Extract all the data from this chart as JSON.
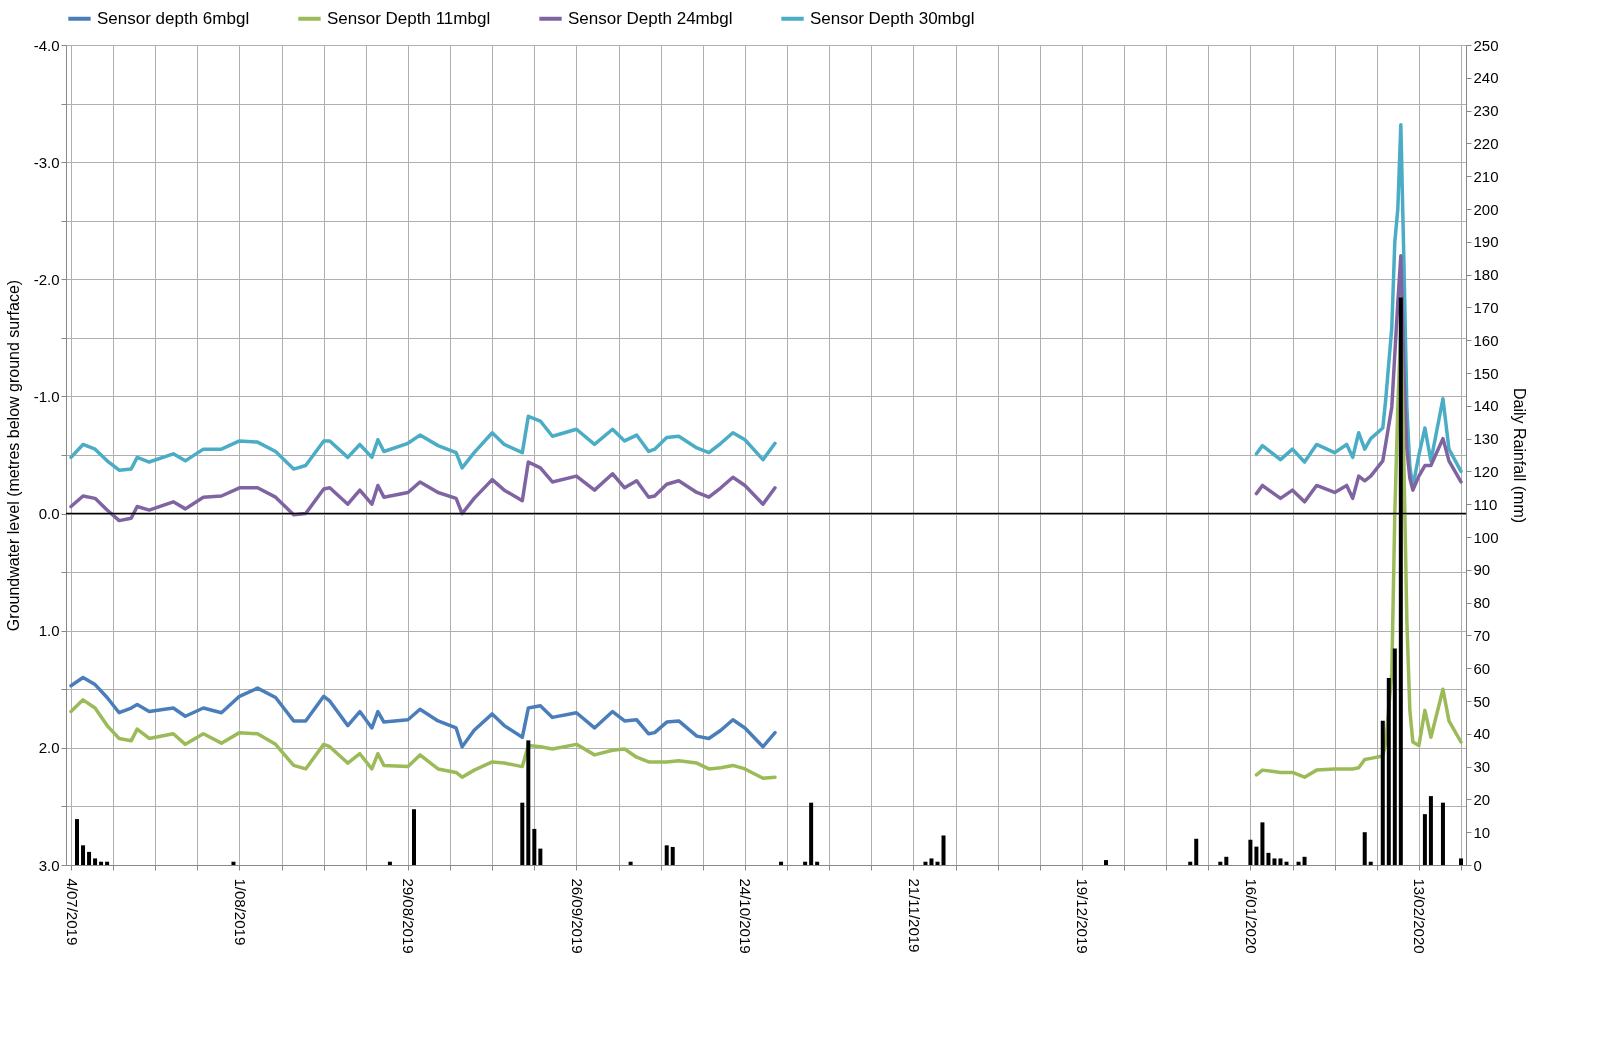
{
  "chart_data": {
    "type": "line",
    "ylabel": "Groundwater level (metres below ground surface)",
    "y2label": "Daily Rainfall (mm)",
    "legend": "top",
    "grid": true,
    "line_style": "solid",
    "xlim": [
      "2019-07-04",
      "2020-02-20"
    ],
    "xticks": [
      {
        "value": "2019-07-04",
        "label": "4/07/2019"
      },
      {
        "value": "2019-07-11",
        "label": null
      },
      {
        "value": "2019-07-18",
        "label": null
      },
      {
        "value": "2019-07-25",
        "label": null
      },
      {
        "value": "2019-08-01",
        "label": "1/08/2019"
      },
      {
        "value": "2019-08-08",
        "label": null
      },
      {
        "value": "2019-08-15",
        "label": null
      },
      {
        "value": "2019-08-22",
        "label": null
      },
      {
        "value": "2019-08-29",
        "label": "29/08/2019"
      },
      {
        "value": "2019-09-05",
        "label": null
      },
      {
        "value": "2019-09-12",
        "label": null
      },
      {
        "value": "2019-09-19",
        "label": null
      },
      {
        "value": "2019-09-26",
        "label": "26/09/2019"
      },
      {
        "value": "2019-10-03",
        "label": null
      },
      {
        "value": "2019-10-10",
        "label": null
      },
      {
        "value": "2019-10-17",
        "label": null
      },
      {
        "value": "2019-10-24",
        "label": "24/10/2019"
      },
      {
        "value": "2019-10-31",
        "label": null
      },
      {
        "value": "2019-11-07",
        "label": null
      },
      {
        "value": "2019-11-14",
        "label": null
      },
      {
        "value": "2019-11-21",
        "label": "21/11/2019"
      },
      {
        "value": "2019-11-28",
        "label": null
      },
      {
        "value": "2019-12-05",
        "label": null
      },
      {
        "value": "2019-12-12",
        "label": null
      },
      {
        "value": "2019-12-19",
        "label": "19/12/2019"
      },
      {
        "value": "2019-12-26",
        "label": null
      },
      {
        "value": "2020-01-02",
        "label": null
      },
      {
        "value": "2020-01-09",
        "label": null
      },
      {
        "value": "2020-01-16",
        "label": "16/01/2020"
      },
      {
        "value": "2020-01-23",
        "label": null
      },
      {
        "value": "2020-01-30",
        "label": null
      },
      {
        "value": "2020-02-06",
        "label": null
      },
      {
        "value": "2020-02-13",
        "label": "13/02/2020"
      },
      {
        "value": "2020-02-20",
        "label": null
      }
    ],
    "ylim": [
      3.0,
      -4.0
    ],
    "yticks": [
      {
        "value": -4.0,
        "label": "-4.0"
      },
      {
        "value": -3.5,
        "label": null
      },
      {
        "value": -3.0,
        "label": "-3.0"
      },
      {
        "value": -2.5,
        "label": null
      },
      {
        "value": -2.0,
        "label": "-2.0"
      },
      {
        "value": -1.5,
        "label": null
      },
      {
        "value": -1.0,
        "label": "-1.0"
      },
      {
        "value": -0.5,
        "label": null
      },
      {
        "value": 0.0,
        "label": "0.0"
      },
      {
        "value": 0.5,
        "label": null
      },
      {
        "value": 1.0,
        "label": "1.0"
      },
      {
        "value": 1.5,
        "label": null
      },
      {
        "value": 2.0,
        "label": "2.0"
      },
      {
        "value": 2.5,
        "label": null
      },
      {
        "value": 3.0,
        "label": "3.0"
      }
    ],
    "y2lim": [
      0,
      250
    ],
    "y2ticks": [
      0,
      10,
      20,
      30,
      40,
      50,
      60,
      70,
      80,
      90,
      100,
      110,
      120,
      130,
      140,
      150,
      160,
      170,
      180,
      190,
      200,
      210,
      220,
      230,
      240,
      250
    ],
    "ref_lines": [
      {
        "axis": "y",
        "value": 0.0,
        "color": "#000000"
      }
    ],
    "x": [
      "2019-07-04",
      "2019-07-06",
      "2019-07-08",
      "2019-07-10",
      "2019-07-12",
      "2019-07-14",
      "2019-07-15",
      "2019-07-17",
      "2019-07-21",
      "2019-07-23",
      "2019-07-26",
      "2019-07-29",
      "2019-08-01",
      "2019-08-04",
      "2019-08-07",
      "2019-08-10",
      "2019-08-12",
      "2019-08-15",
      "2019-08-16",
      "2019-08-19",
      "2019-08-21",
      "2019-08-23",
      "2019-08-24",
      "2019-08-25",
      "2019-08-29",
      "2019-08-31",
      "2019-09-03",
      "2019-09-06",
      "2019-09-07",
      "2019-09-09",
      "2019-09-12",
      "2019-09-14",
      "2019-09-17",
      "2019-09-18",
      "2019-09-20",
      "2019-09-22",
      "2019-09-26",
      "2019-09-29",
      "2019-10-02",
      "2019-10-04",
      "2019-10-06",
      "2019-10-08",
      "2019-10-09",
      "2019-10-11",
      "2019-10-13",
      "2019-10-16",
      "2019-10-18",
      "2019-10-20",
      "2019-10-22",
      "2019-10-24",
      "2019-10-27",
      "2019-10-29",
      "2019-12-01",
      "2020-01-17",
      "2020-01-18",
      "2020-01-21",
      "2020-01-23",
      "2020-01-25",
      "2020-01-27",
      "2020-01-30",
      "2020-02-01",
      "2020-02-02",
      "2020-02-03",
      "2020-02-04",
      "2020-02-05",
      "2020-02-07",
      "2020-02-07T12:00",
      "2020-02-08T12:00",
      "2020-02-09",
      "2020-02-09T12:00",
      "2020-02-10",
      "2020-02-10T12:00",
      "2020-02-11",
      "2020-02-11T12:00",
      "2020-02-12",
      "2020-02-13",
      "2020-02-14",
      "2020-02-15",
      "2020-02-17",
      "2020-02-18",
      "2020-02-20"
    ],
    "series": [
      {
        "name": "Sensor depth 6mbgl",
        "color": "#4a7ebb",
        "values": [
          1.47,
          1.4,
          1.46,
          1.57,
          1.7,
          1.66,
          1.63,
          1.69,
          1.66,
          1.73,
          1.66,
          1.7,
          1.56,
          1.49,
          1.57,
          1.77,
          1.77,
          1.56,
          1.6,
          1.81,
          1.69,
          1.83,
          1.69,
          1.78,
          1.76,
          1.67,
          1.77,
          1.83,
          1.99,
          1.85,
          1.71,
          1.81,
          1.91,
          1.66,
          1.64,
          1.74,
          1.7,
          1.83,
          1.69,
          1.77,
          1.76,
          1.88,
          1.87,
          1.78,
          1.77,
          1.9,
          1.92,
          1.85,
          1.76,
          1.83,
          1.99,
          1.87,
          null,
          null,
          null,
          null,
          null,
          null,
          null,
          null,
          null,
          null,
          null,
          null,
          null,
          null,
          null,
          null,
          null,
          null,
          null,
          null,
          null,
          null,
          null,
          null,
          null,
          null,
          null,
          null,
          null
        ]
      },
      {
        "name": "Sensor Depth 11mbgl",
        "color": "#9bbb59",
        "values": [
          1.69,
          1.59,
          1.66,
          1.81,
          1.92,
          1.94,
          1.84,
          1.92,
          1.88,
          1.97,
          1.88,
          1.96,
          1.87,
          1.88,
          1.97,
          2.15,
          2.18,
          1.97,
          1.99,
          2.13,
          2.05,
          2.18,
          2.05,
          2.15,
          2.16,
          2.06,
          2.18,
          2.21,
          2.25,
          2.19,
          2.12,
          2.13,
          2.16,
          1.98,
          1.99,
          2.01,
          1.97,
          2.06,
          2.02,
          2.01,
          2.08,
          2.12,
          2.12,
          2.12,
          2.11,
          2.13,
          2.18,
          2.17,
          2.15,
          2.18,
          2.26,
          2.25,
          null,
          2.23,
          2.19,
          2.21,
          2.21,
          2.25,
          2.19,
          2.18,
          2.18,
          2.18,
          2.17,
          2.1,
          2.09,
          2.07,
          1.95,
          1.36,
          0.0,
          -0.91,
          -1.59,
          -0.45,
          0.91,
          1.68,
          1.95,
          1.98,
          1.68,
          1.91,
          1.5,
          1.77,
          1.95
        ]
      },
      {
        "name": "Sensor Depth 24mbgl",
        "color": "#8064a2",
        "values": [
          -0.06,
          -0.15,
          -0.13,
          -0.03,
          0.06,
          0.04,
          -0.06,
          -0.03,
          -0.1,
          -0.04,
          -0.14,
          -0.15,
          -0.22,
          -0.22,
          -0.14,
          0.01,
          0.0,
          -0.21,
          -0.22,
          -0.08,
          -0.2,
          -0.08,
          -0.24,
          -0.14,
          -0.18,
          -0.27,
          -0.18,
          -0.13,
          0.0,
          -0.13,
          -0.29,
          -0.2,
          -0.11,
          -0.44,
          -0.39,
          -0.27,
          -0.32,
          -0.2,
          -0.34,
          -0.22,
          -0.28,
          -0.14,
          -0.15,
          -0.25,
          -0.28,
          -0.18,
          -0.14,
          -0.22,
          -0.31,
          -0.24,
          -0.08,
          -0.22,
          null,
          -0.17,
          -0.24,
          -0.13,
          -0.2,
          -0.1,
          -0.24,
          -0.18,
          -0.24,
          -0.13,
          -0.32,
          -0.28,
          -0.32,
          -0.45,
          -0.6,
          -0.91,
          -1.36,
          -1.8,
          -2.2,
          -1.2,
          -0.55,
          -0.3,
          -0.2,
          -0.32,
          -0.41,
          -0.41,
          -0.64,
          -0.45,
          -0.27
        ]
      },
      {
        "name": "Sensor Depth 30mbgl",
        "color": "#4bacc6",
        "values": [
          -0.48,
          -0.59,
          -0.55,
          -0.45,
          -0.37,
          -0.38,
          -0.48,
          -0.44,
          -0.51,
          -0.45,
          -0.55,
          -0.55,
          -0.62,
          -0.61,
          -0.53,
          -0.38,
          -0.41,
          -0.62,
          -0.62,
          -0.48,
          -0.59,
          -0.48,
          -0.63,
          -0.53,
          -0.6,
          -0.67,
          -0.58,
          -0.52,
          -0.39,
          -0.52,
          -0.69,
          -0.59,
          -0.52,
          -0.83,
          -0.79,
          -0.66,
          -0.72,
          -0.59,
          -0.72,
          -0.62,
          -0.67,
          -0.53,
          -0.55,
          -0.65,
          -0.66,
          -0.56,
          -0.52,
          -0.6,
          -0.69,
          -0.63,
          -0.46,
          -0.6,
          null,
          -0.51,
          -0.58,
          -0.46,
          -0.55,
          -0.44,
          -0.59,
          -0.52,
          -0.59,
          -0.48,
          -0.69,
          -0.55,
          -0.64,
          -0.73,
          -0.98,
          -1.59,
          -2.32,
          -2.6,
          -3.32,
          -2.18,
          -0.91,
          -0.4,
          -0.23,
          -0.5,
          -0.73,
          -0.45,
          -0.98,
          -0.55,
          -0.36
        ]
      },
      {
        "type": "bar",
        "axis": "y2",
        "color": "#000000",
        "x": [
          "2019-07-05",
          "2019-07-06",
          "2019-07-07",
          "2019-07-08",
          "2019-07-09",
          "2019-07-10",
          "2019-07-31",
          "2019-08-26",
          "2019-08-30",
          "2019-09-17",
          "2019-09-18",
          "2019-09-19",
          "2019-09-20",
          "2019-10-05",
          "2019-10-11",
          "2019-10-12",
          "2019-10-30",
          "2019-11-03",
          "2019-11-04",
          "2019-11-05",
          "2019-11-23",
          "2019-11-24",
          "2019-11-25",
          "2019-11-26",
          "2019-12-23",
          "2020-01-06",
          "2020-01-07",
          "2020-01-11",
          "2020-01-12",
          "2020-01-16",
          "2020-01-17",
          "2020-01-18",
          "2020-01-19",
          "2020-01-20",
          "2020-01-21",
          "2020-01-22",
          "2020-01-24",
          "2020-01-25",
          "2020-02-04",
          "2020-02-05",
          "2020-02-07",
          "2020-02-08",
          "2020-02-09",
          "2020-02-10",
          "2020-02-14",
          "2020-02-15",
          "2020-02-17",
          "2020-02-20"
        ],
        "values": [
          14,
          6,
          4,
          2,
          1,
          1,
          1,
          1,
          17,
          19,
          38,
          11,
          5,
          1,
          6,
          5.5,
          1,
          1,
          19,
          1,
          1,
          2,
          1,
          9,
          1.5,
          1,
          8,
          1,
          2.5,
          7.7,
          5.6,
          13,
          3.7,
          2,
          2,
          1,
          1,
          2.5,
          10,
          1,
          44,
          57,
          66,
          173,
          15.5,
          21,
          19,
          2
        ]
      }
    ]
  }
}
